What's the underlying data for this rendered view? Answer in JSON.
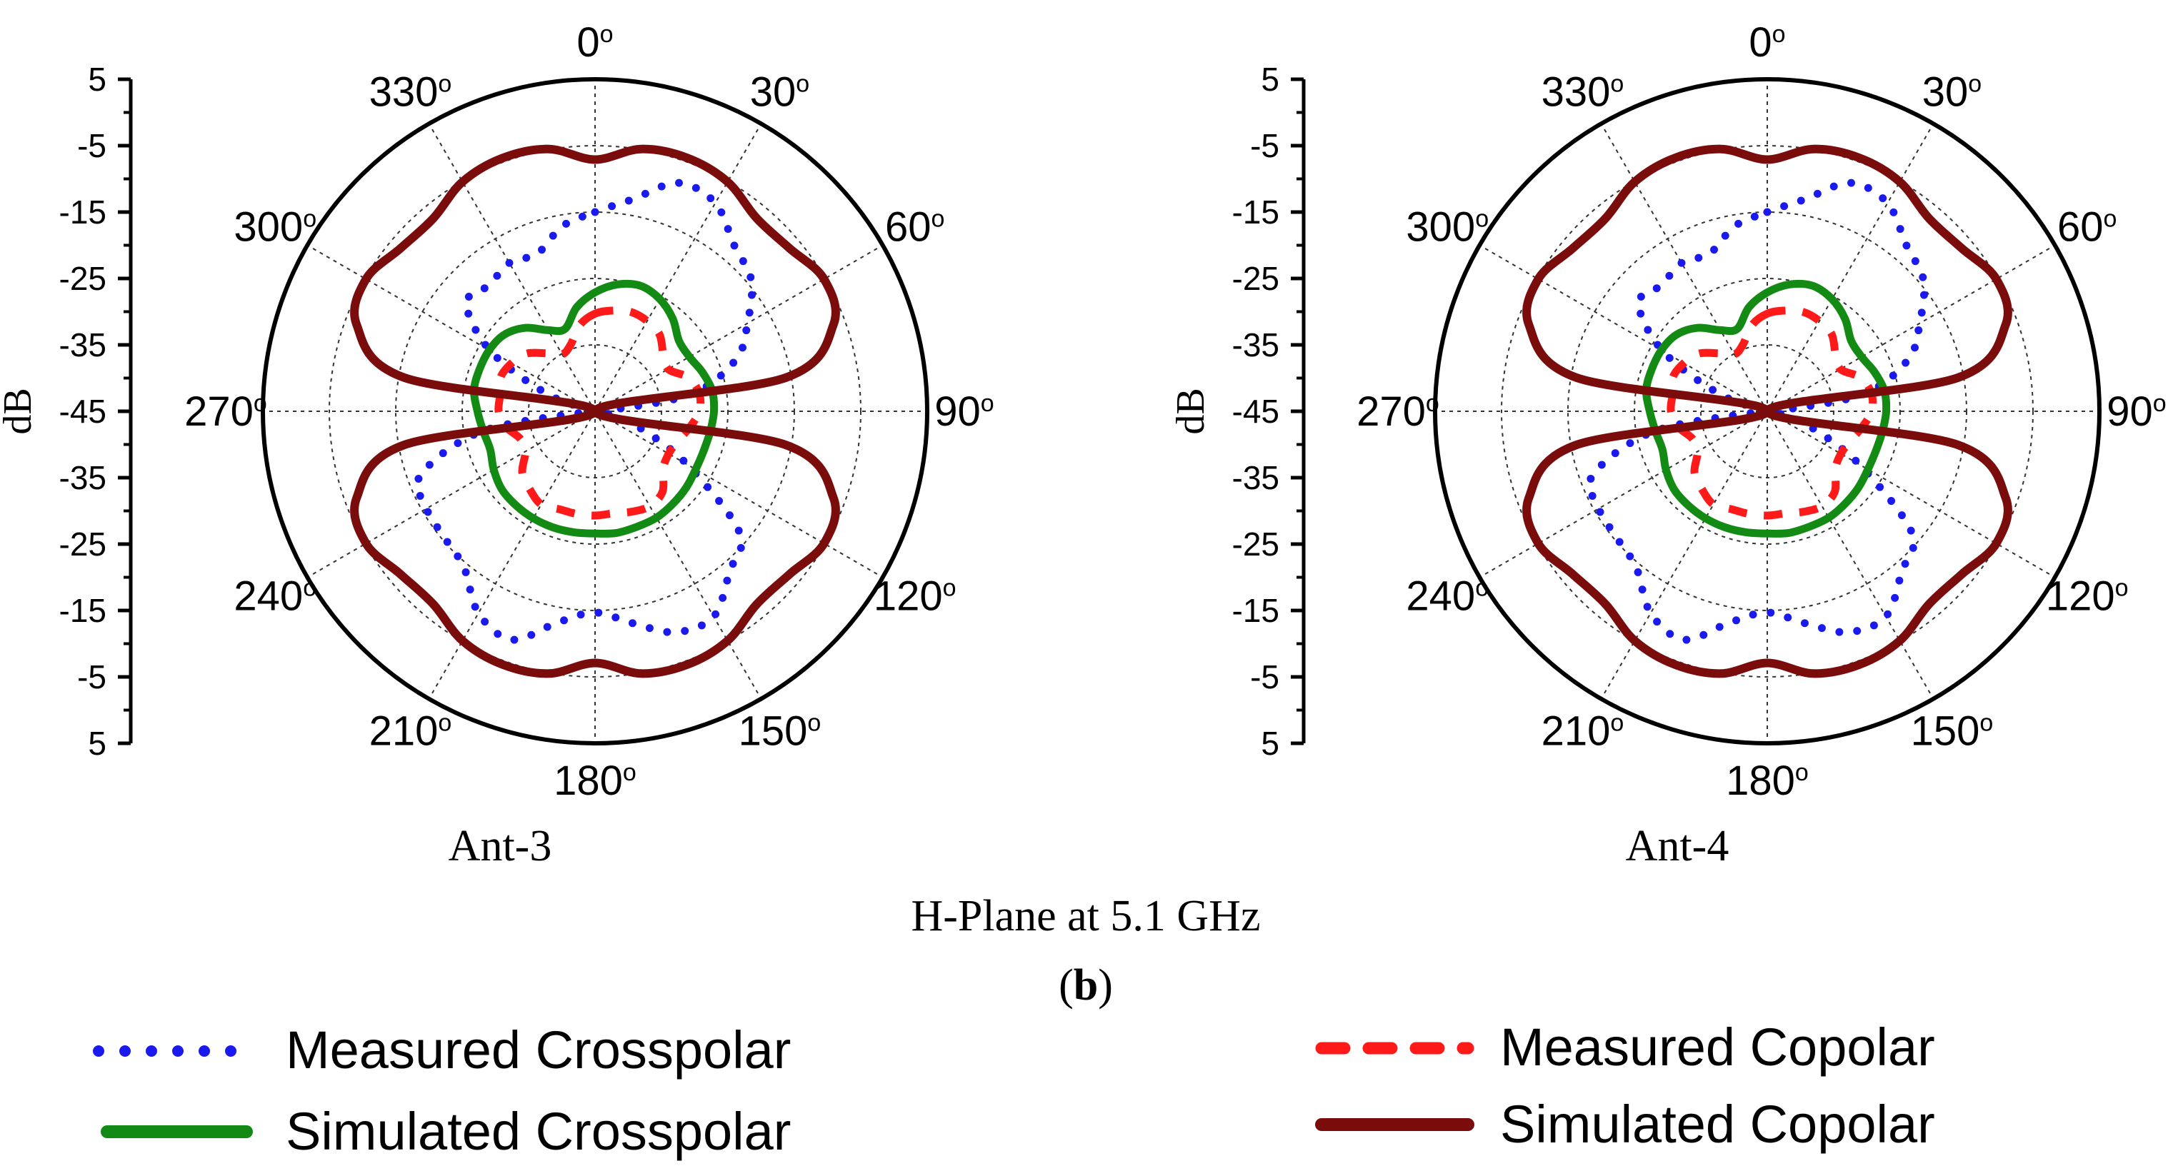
{
  "figure": {
    "caption_title": "H-Plane at 5.1 GHz",
    "caption_label": "(b)",
    "caption_label_open": "(",
    "caption_label_letter": "b",
    "caption_label_close": ")",
    "degree_symbol": "o"
  },
  "legend": {
    "items": [
      {
        "key": "meas_x",
        "label": "Measured Crosspolar"
      },
      {
        "key": "sim_x",
        "label": "Simulated Crosspolar"
      },
      {
        "key": "meas_co",
        "label": "Measured Copolar"
      },
      {
        "key": "sim_co",
        "label": "Simulated Copolar"
      }
    ]
  },
  "colors": {
    "meas_x": "#1a1aee",
    "sim_x": "#138a13",
    "meas_co": "#ff1a1a",
    "sim_co": "#7a0c0c",
    "axis": "#000000",
    "grid": "#333333"
  },
  "chart_data": [
    {
      "type": "polar",
      "title": "Ant-3",
      "r_axis_label": "dB",
      "r_range": [
        -45,
        5
      ],
      "r_ticks": [
        5,
        -5,
        -15,
        -25,
        -35,
        -45,
        -35,
        -25,
        -15,
        -5,
        5
      ],
      "angle_ticks": [
        "0",
        "30",
        "60",
        "90",
        "120",
        "150",
        "180",
        "210",
        "240",
        "270",
        "300",
        "330"
      ],
      "angle_step_deg": 10,
      "series": [
        {
          "name": "Measured Crosspolar",
          "key": "meas_x",
          "values": [
            -15.0,
            -12.6,
            -8.4,
            -8.8,
            -12.4,
            -14.3,
            -18.5,
            -22.5,
            -30.5,
            -43.7,
            -43.2,
            -38.0,
            -29.0,
            -16.6,
            -13.5,
            -9.3,
            -9.6,
            -12.6,
            -14.7,
            -12.7,
            -8.4,
            -9.9,
            -14.3,
            -15.4,
            -15.7,
            -17.1,
            -27.8,
            -44.3,
            -44.7,
            -37.3,
            -26.8,
            -19.7,
            -20.2,
            -19.2,
            -19.7,
            -16.7
          ]
        },
        {
          "name": "Simulated Crosspolar",
          "key": "sim_x",
          "values": [
            -27.1,
            -25.6,
            -24.9,
            -25.5,
            -26.8,
            -28.5,
            -28.6,
            -27.8,
            -27.1,
            -27.1,
            -27.4,
            -27.6,
            -27.5,
            -27.1,
            -26.8,
            -26.5,
            -26.5,
            -26.4,
            -26.6,
            -26.5,
            -26.4,
            -26.4,
            -26.5,
            -26.7,
            -27.4,
            -28.2,
            -27.9,
            -27.3,
            -26.5,
            -26.5,
            -26.6,
            -27.1,
            -28.6,
            -30.9,
            -31.8,
            -29.1
          ]
        },
        {
          "name": "Measured Copolar",
          "key": "meas_co",
          "values": [
            -30.3,
            -29.6,
            -29.1,
            -29.3,
            -29.9,
            -31.6,
            -32.3,
            -30.1,
            -29.1,
            -29.3,
            -30.6,
            -31.8,
            -32.2,
            -31.6,
            -29.2,
            -28.5,
            -28.9,
            -29.4,
            -29.3,
            -29.3,
            -29.3,
            -28.8,
            -29.7,
            -30.7,
            -32.9,
            -33.0,
            -31.4,
            -30.5,
            -30.5,
            -29.9,
            -30.5,
            -31.5,
            -33.6,
            -35.1,
            -34.3,
            -31.8
          ]
        },
        {
          "name": "Simulated Copolar",
          "key": "sim_co",
          "values": [
            -7.1,
            -4.9,
            -4.4,
            -5.1,
            -7.1,
            -6.8,
            -5.2,
            -6.8,
            -15.8,
            -45.0,
            -15.8,
            -6.8,
            -5.2,
            -6.8,
            -7.1,
            -5.1,
            -4.4,
            -4.9,
            -7.1,
            -4.9,
            -4.4,
            -5.1,
            -7.1,
            -6.8,
            -5.2,
            -6.8,
            -15.8,
            -45.0,
            -15.8,
            -6.8,
            -5.2,
            -6.8,
            -7.1,
            -5.1,
            -4.4,
            -4.9
          ]
        }
      ]
    },
    {
      "type": "polar",
      "title": "Ant-4",
      "r_axis_label": "dB",
      "r_range": [
        -45,
        5
      ],
      "r_ticks": [
        5,
        -5,
        -15,
        -25,
        -35,
        -45,
        -35,
        -25,
        -15,
        -5,
        5
      ],
      "angle_ticks": [
        "0",
        "30",
        "60",
        "90",
        "120",
        "150",
        "180",
        "210",
        "240",
        "270",
        "300",
        "330"
      ],
      "angle_step_deg": 10,
      "series": [
        {
          "name": "Measured Crosspolar",
          "key": "meas_x",
          "values": [
            -15.0,
            -12.6,
            -8.4,
            -8.8,
            -12.4,
            -14.3,
            -18.5,
            -22.5,
            -30.5,
            -43.7,
            -43.2,
            -38.0,
            -29.0,
            -16.6,
            -13.5,
            -9.3,
            -9.6,
            -12.6,
            -14.7,
            -12.7,
            -8.4,
            -9.9,
            -14.3,
            -15.4,
            -15.7,
            -17.1,
            -27.8,
            -44.3,
            -44.7,
            -37.3,
            -26.8,
            -19.7,
            -20.2,
            -19.2,
            -19.7,
            -16.7
          ]
        },
        {
          "name": "Simulated Crosspolar",
          "key": "sim_x",
          "values": [
            -27.1,
            -25.6,
            -24.9,
            -25.5,
            -26.8,
            -28.5,
            -28.6,
            -27.8,
            -27.1,
            -27.1,
            -27.4,
            -27.6,
            -27.5,
            -27.1,
            -26.8,
            -26.5,
            -26.5,
            -26.4,
            -26.6,
            -26.5,
            -26.4,
            -26.4,
            -26.5,
            -26.7,
            -27.4,
            -28.2,
            -27.9,
            -27.3,
            -26.5,
            -26.5,
            -26.6,
            -27.1,
            -28.6,
            -30.9,
            -31.8,
            -29.1
          ]
        },
        {
          "name": "Measured Copolar",
          "key": "meas_co",
          "values": [
            -30.3,
            -29.6,
            -29.1,
            -29.3,
            -29.9,
            -31.6,
            -32.3,
            -30.1,
            -29.1,
            -29.3,
            -30.6,
            -31.8,
            -32.2,
            -31.6,
            -29.2,
            -28.5,
            -28.9,
            -29.4,
            -29.3,
            -29.3,
            -29.3,
            -28.8,
            -29.7,
            -30.7,
            -32.9,
            -33.0,
            -31.4,
            -30.5,
            -30.5,
            -29.9,
            -30.5,
            -31.5,
            -33.6,
            -35.1,
            -34.3,
            -31.8
          ]
        },
        {
          "name": "Simulated Copolar",
          "key": "sim_co",
          "values": [
            -7.1,
            -4.9,
            -4.4,
            -5.1,
            -7.1,
            -6.8,
            -5.2,
            -6.8,
            -15.8,
            -45.0,
            -15.8,
            -6.8,
            -5.2,
            -6.8,
            -7.1,
            -5.1,
            -4.4,
            -4.9,
            -7.1,
            -4.9,
            -4.4,
            -5.1,
            -7.1,
            -6.8,
            -5.2,
            -6.8,
            -15.8,
            -45.0,
            -15.8,
            -6.8,
            -5.2,
            -6.8,
            -7.1,
            -5.1,
            -4.4,
            -4.9
          ]
        }
      ]
    }
  ]
}
